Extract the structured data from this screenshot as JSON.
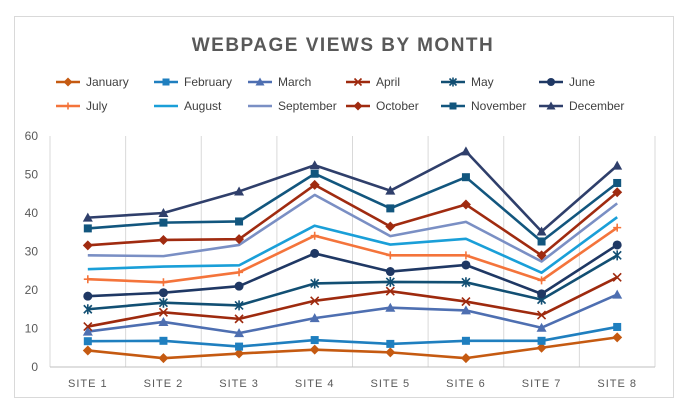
{
  "chart_data": {
    "type": "line",
    "title": "WEBPAGE VIEWS BY MONTH",
    "xlabel": "",
    "ylabel": "",
    "ylim": [
      0,
      60
    ],
    "yticks": [
      0,
      10,
      20,
      30,
      40,
      50,
      60
    ],
    "grid": "vertical",
    "legend_position": "top",
    "categories": [
      "SITE 1",
      "SITE 2",
      "SITE 3",
      "SITE 4",
      "SITE 5",
      "SITE 6",
      "SITE 7",
      "SITE 8"
    ],
    "series": [
      {
        "name": "January",
        "color": "#c55a11",
        "marker": "diamond",
        "values": [
          4.3,
          2.3,
          3.5,
          4.5,
          3.8,
          2.3,
          5.0,
          7.7
        ]
      },
      {
        "name": "February",
        "color": "#1f7fbf",
        "marker": "square",
        "values": [
          6.7,
          6.8,
          5.3,
          7.0,
          6.0,
          6.8,
          6.8,
          10.4
        ]
      },
      {
        "name": "March",
        "color": "#4e6fb1",
        "marker": "triangle",
        "values": [
          9.2,
          11.7,
          8.8,
          12.7,
          15.4,
          14.7,
          10.2,
          18.8
        ]
      },
      {
        "name": "April",
        "color": "#9e2a0e",
        "marker": "x",
        "values": [
          10.5,
          14.2,
          12.5,
          17.2,
          19.7,
          17.0,
          13.5,
          23.3
        ]
      },
      {
        "name": "May",
        "color": "#124f73",
        "marker": "star",
        "values": [
          15.0,
          16.7,
          16.0,
          21.7,
          22.1,
          22.0,
          17.5,
          29.0
        ]
      },
      {
        "name": "June",
        "color": "#1f3864",
        "marker": "circle",
        "values": [
          18.4,
          19.3,
          21.0,
          29.5,
          24.8,
          26.5,
          19.0,
          31.7
        ]
      },
      {
        "name": "July",
        "color": "#f4743b",
        "marker": "plus",
        "values": [
          22.8,
          22.0,
          24.6,
          34.1,
          29.0,
          29.0,
          22.5,
          36.2
        ]
      },
      {
        "name": "August",
        "color": "#1a9fd8",
        "marker": "none",
        "values": [
          25.4,
          26.1,
          26.4,
          36.7,
          31.8,
          33.3,
          24.5,
          38.9
        ]
      },
      {
        "name": "September",
        "color": "#7a8fc4",
        "marker": "none",
        "values": [
          29.0,
          28.8,
          31.7,
          44.7,
          34.0,
          37.7,
          27.4,
          42.5
        ]
      },
      {
        "name": "October",
        "color": "#a02b10",
        "marker": "diamond",
        "values": [
          31.6,
          33.0,
          33.2,
          47.3,
          36.5,
          42.2,
          29.0,
          45.4
        ]
      },
      {
        "name": "November",
        "color": "#12567e",
        "marker": "square",
        "values": [
          36.0,
          37.5,
          37.8,
          50.2,
          41.2,
          49.3,
          32.6,
          47.8
        ]
      },
      {
        "name": "December",
        "color": "#2f3f6b",
        "marker": "triangle",
        "values": [
          38.8,
          40.0,
          45.6,
          52.4,
          45.8,
          56.0,
          35.2,
          52.3
        ]
      }
    ]
  }
}
